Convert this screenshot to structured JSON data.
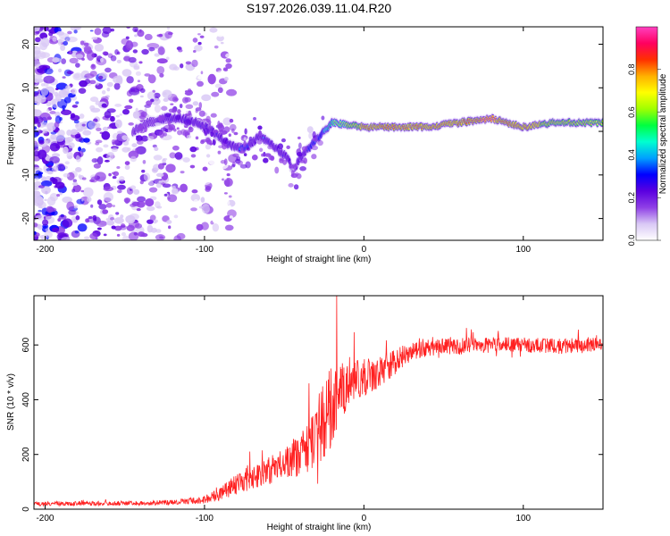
{
  "title": "S197.2026.039.11.04.R20",
  "chart_data": [
    {
      "type": "heatmap",
      "xlabel": "Height of straight line (km)",
      "ylabel": "Frequency (Hz)",
      "xlim": [
        -207,
        150
      ],
      "ylim": [
        -25,
        24
      ],
      "xticks": [
        -200,
        -100,
        0,
        100
      ],
      "yticks": [
        -20,
        -10,
        0,
        10,
        20
      ],
      "colorbar": {
        "label": "Normalized spectral amplitude",
        "range": [
          0,
          1
        ],
        "ticks": [
          "0.0",
          "0.2",
          "0.4",
          "0.6",
          "0.8"
        ],
        "colors": [
          "#ffffff",
          "#d9c8f5",
          "#8f3fe6",
          "#5a00e0",
          "#0000ff",
          "#00a0ff",
          "#00ffd0",
          "#00ff40",
          "#a0ff00",
          "#ffff00",
          "#ffb000",
          "#ff3000",
          "#ff0060",
          "#ff40c0"
        ]
      },
      "ridge": {
        "x": [
          -145,
          -135,
          -125,
          -115,
          -105,
          -95,
          -85,
          -75,
          -65,
          -55,
          -48,
          -44,
          -40,
          -35,
          -30,
          -25,
          -20,
          0,
          20,
          40,
          60,
          80,
          100,
          120,
          150
        ],
        "y": [
          0,
          2,
          3,
          3,
          2,
          0,
          -3,
          -4,
          -1,
          -4,
          -6,
          -9,
          -6,
          -4,
          -2,
          0,
          2,
          1,
          1,
          1,
          2,
          3,
          1,
          2,
          2
        ],
        "amplitude": [
          0.2,
          0.25,
          0.3,
          0.3,
          0.3,
          0.3,
          0.35,
          0.4,
          0.35,
          0.35,
          0.3,
          0.25,
          0.3,
          0.4,
          0.4,
          0.5,
          0.6,
          0.85,
          0.9,
          0.85,
          0.9,
          0.95,
          0.85,
          0.8,
          0.75
        ]
      },
      "noise_region": {
        "x_from": -207,
        "x_to": -92
      }
    },
    {
      "type": "line",
      "xlabel": "Height of straight line (km)",
      "ylabel": "SNR (10 * v/v)",
      "xlim": [
        -207,
        150
      ],
      "ylim": [
        0,
        780
      ],
      "xticks": [
        -200,
        -100,
        0,
        100
      ],
      "yticks": [
        0,
        200,
        400,
        600
      ],
      "color": "#ff2020",
      "envelope": {
        "x": [
          -207,
          -140,
          -120,
          -100,
          -90,
          -80,
          -70,
          -60,
          -50,
          -40,
          -30,
          -25,
          -20,
          -15,
          -10,
          0,
          10,
          20,
          25,
          30,
          40,
          60,
          80,
          100,
          120,
          150
        ],
        "mean": [
          20,
          22,
          25,
          35,
          55,
          90,
          120,
          140,
          170,
          200,
          260,
          330,
          380,
          430,
          460,
          480,
          500,
          540,
          560,
          580,
          590,
          595,
          600,
          600,
          595,
          600
        ],
        "noise": [
          8,
          8,
          10,
          15,
          25,
          40,
          45,
          50,
          60,
          80,
          110,
          140,
          160,
          120,
          90,
          70,
          60,
          45,
          40,
          35,
          30,
          30,
          28,
          28,
          28,
          28
        ]
      },
      "peak": {
        "x": -17,
        "y": 780
      }
    }
  ]
}
